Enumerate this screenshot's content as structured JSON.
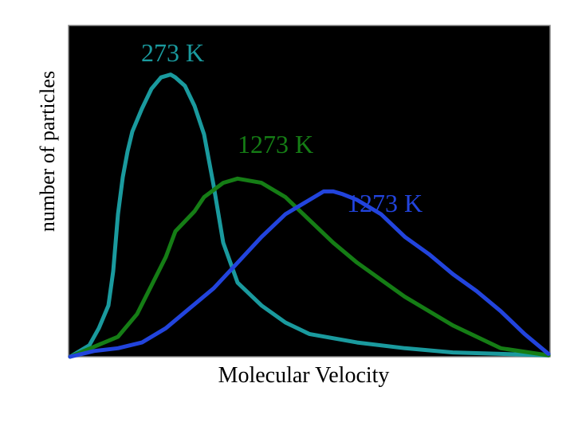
{
  "chart_data": {
    "type": "line",
    "title": "",
    "xlabel": "Molecular Velocity",
    "ylabel": "number of particles",
    "grid": false,
    "legend": "none",
    "background_color": "#000000",
    "x_ticks_shown": false,
    "y_ticks_shown": false,
    "xlim": [
      0,
      100
    ],
    "ylim": [
      0,
      100
    ],
    "series": [
      {
        "name": "273 K",
        "color": "#1a9a9e",
        "x": [
          0,
          4,
          6,
          8,
          9,
          10,
          11,
          12,
          13,
          15,
          17,
          19,
          21,
          22,
          24,
          26,
          28,
          30,
          32,
          35,
          40,
          45,
          50,
          60,
          70,
          80,
          90,
          100
        ],
        "y": [
          0,
          4,
          10,
          18,
          30,
          50,
          63,
          72,
          79,
          87,
          94,
          98,
          99,
          98,
          95,
          88,
          78,
          60,
          40,
          26,
          18,
          12,
          8,
          5,
          3,
          1.5,
          1,
          0.5
        ]
      },
      {
        "name": "1273 K",
        "color": "#157d15",
        "x": [
          0,
          10,
          14,
          20,
          22,
          26,
          28,
          32,
          35,
          40,
          45,
          50,
          55,
          60,
          70,
          80,
          90,
          100
        ],
        "y": [
          0,
          7,
          15,
          35,
          44,
          51,
          56,
          61,
          62.5,
          61,
          56,
          48,
          40,
          33,
          21,
          11,
          3,
          0.5
        ]
      },
      {
        "name": "1273 K",
        "color": "#2244dd",
        "x": [
          0,
          5,
          10,
          15,
          20,
          25,
          30,
          35,
          40,
          45,
          50,
          53,
          55,
          57,
          60,
          65,
          70,
          75,
          80,
          85,
          90,
          95,
          100
        ],
        "y": [
          0,
          2,
          3,
          5,
          10,
          17,
          24,
          33,
          42,
          50,
          55,
          58,
          58,
          57,
          55,
          50,
          42,
          36,
          29,
          23,
          16,
          8,
          1
        ]
      }
    ],
    "annotations": [
      {
        "text": "273 K",
        "color": "#1a9a9e"
      },
      {
        "text": "1273 K",
        "color": "#157d15"
      },
      {
        "text": "1273 K",
        "color": "#2244dd"
      }
    ]
  }
}
